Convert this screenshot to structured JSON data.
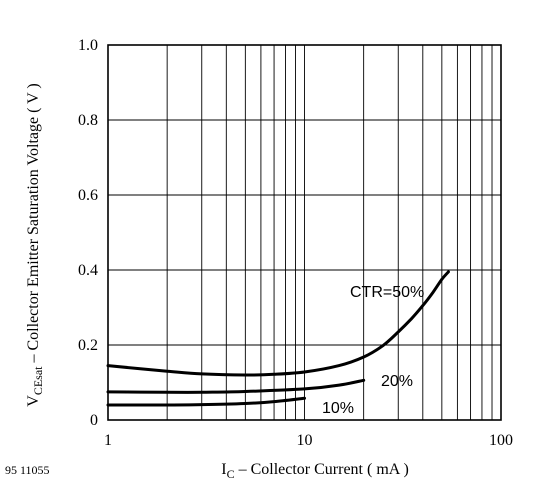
{
  "figure_number": "95 11055",
  "chart_data": {
    "type": "line",
    "xlabel": {
      "symbol": "I",
      "subscript": "C",
      "text": " – Collector Current ( mA )"
    },
    "ylabel": {
      "symbol": "V",
      "subscript": "CEsat",
      "text": " – Collector Emitter Saturation Voltage ( V )"
    },
    "x_scale": "log",
    "xlim": [
      1,
      100
    ],
    "ylim": [
      0,
      1.0
    ],
    "x_ticks": [
      1,
      10,
      100
    ],
    "x_tick_labels": [
      "1",
      "10",
      "100"
    ],
    "y_ticks": [
      0,
      0.2,
      0.4,
      0.6,
      0.8,
      1.0
    ],
    "y_tick_labels": [
      "0",
      "0.2",
      "0.4",
      "0.6",
      "0.8",
      "1.0"
    ],
    "grid": true,
    "series": [
      {
        "name": "CTR=50%",
        "x": [
          1,
          2,
          3,
          5,
          7,
          10,
          15,
          20,
          25,
          30,
          35,
          40,
          45,
          50,
          54
        ],
        "y": [
          0.145,
          0.13,
          0.123,
          0.12,
          0.122,
          0.128,
          0.145,
          0.168,
          0.198,
          0.235,
          0.27,
          0.305,
          0.34,
          0.375,
          0.395
        ]
      },
      {
        "name": "20%",
        "x": [
          1,
          2,
          3,
          5,
          10,
          15,
          20
        ],
        "y": [
          0.075,
          0.074,
          0.074,
          0.076,
          0.083,
          0.093,
          0.106
        ]
      },
      {
        "name": "10%",
        "x": [
          1,
          2,
          3,
          5,
          7,
          10
        ],
        "y": [
          0.04,
          0.04,
          0.041,
          0.044,
          0.049,
          0.058
        ]
      }
    ]
  }
}
